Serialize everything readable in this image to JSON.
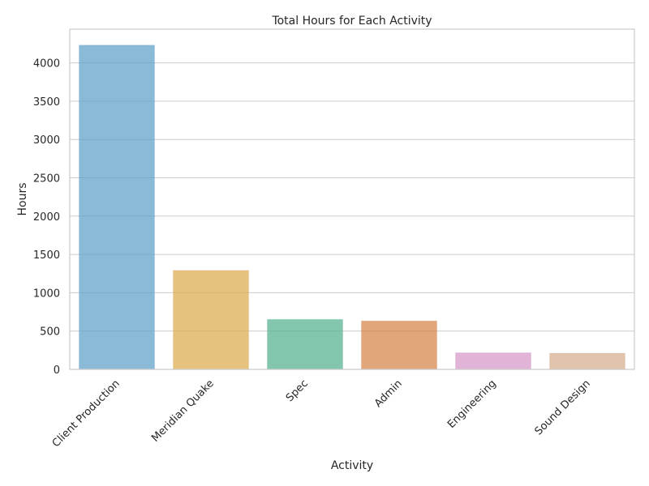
{
  "chart_data": {
    "type": "bar",
    "title": "Total Hours for Each Activity",
    "xlabel": "Activity",
    "ylabel": "Hours",
    "categories": [
      "Client Production",
      "Meridian Quake",
      "Spec",
      "Admin",
      "Engineering",
      "Sound Design"
    ],
    "values": [
      4230,
      1290,
      650,
      630,
      215,
      210
    ],
    "ylim": [
      0,
      4440
    ],
    "yticks": [
      0,
      500,
      1000,
      1500,
      2000,
      2500,
      3000,
      3500,
      4000
    ],
    "ytick_labels": [
      "0",
      "500",
      "1000",
      "1500",
      "2000",
      "2500",
      "3000",
      "3500",
      "4000"
    ],
    "colors": [
      "#5e9fca",
      "#dcab4c",
      "#53b08f",
      "#d58446",
      "#d595c8",
      "#d4ad8a"
    ],
    "bar_opacity": 0.72,
    "grid": "y",
    "legend": "none",
    "xtick_rotation_deg": 45
  }
}
